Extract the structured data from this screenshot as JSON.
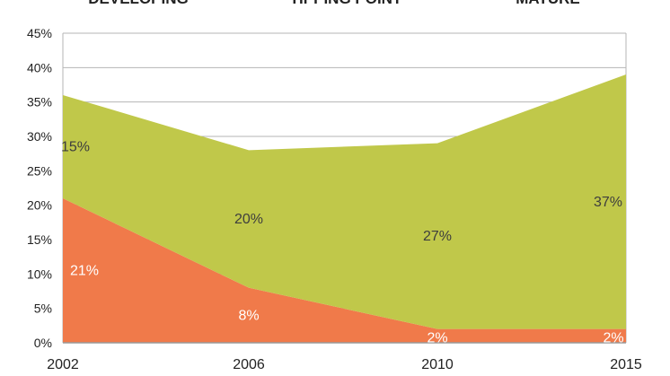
{
  "chart_data": {
    "type": "area",
    "phase_labels": [
      "DEVELOPING",
      "TIPPING POINT",
      "MATURE"
    ],
    "x": [
      "2002",
      "2006",
      "2010",
      "2015"
    ],
    "series": [
      {
        "values": [
          21,
          8,
          2,
          2
        ],
        "data_labels": [
          "21%",
          "8%",
          "2%",
          "2%"
        ],
        "color": "#f07a4a",
        "label_color": "#ffffff"
      },
      {
        "values": [
          15,
          20,
          27,
          37
        ],
        "data_labels": [
          "15%",
          "20%",
          "27%",
          "37%"
        ],
        "color": "#c0c84a",
        "label_color": "#3d3d3d"
      }
    ],
    "stacked": true,
    "ylim": [
      0,
      45
    ],
    "y_ticks": [
      "0%",
      "5%",
      "10%",
      "15%",
      "20%",
      "25%",
      "30%",
      "35%",
      "40%",
      "45%"
    ],
    "grid": true,
    "legend": "none"
  }
}
